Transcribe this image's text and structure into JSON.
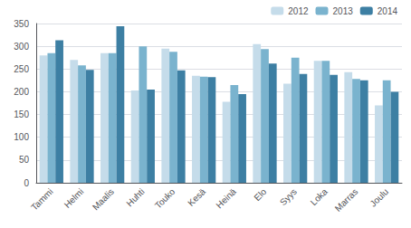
{
  "chart_data": {
    "type": "bar",
    "categories": [
      "Tammi",
      "Helmi",
      "Maalis",
      "Huhti",
      "Touko",
      "Kesä",
      "Heinä",
      "Elo",
      "Syys",
      "Loka",
      "Marras",
      "Joulu"
    ],
    "series": [
      {
        "name": "2012",
        "color": "#c5dcea",
        "values": [
          280,
          270,
          285,
          203,
          295,
          235,
          178,
          305,
          218,
          268,
          243,
          170
        ]
      },
      {
        "name": "2013",
        "color": "#7ab3ce",
        "values": [
          285,
          258,
          285,
          300,
          288,
          233,
          215,
          294,
          275,
          268,
          228,
          225
        ]
      },
      {
        "name": "2014",
        "color": "#3d7fa3",
        "values": [
          313,
          248,
          344,
          205,
          247,
          232,
          195,
          262,
          239,
          237,
          225,
          200
        ]
      }
    ],
    "ylim": [
      0,
      350
    ],
    "yticks": [
      0,
      50,
      100,
      150,
      200,
      250,
      300,
      350
    ],
    "grid": true,
    "legend": "upper right"
  }
}
